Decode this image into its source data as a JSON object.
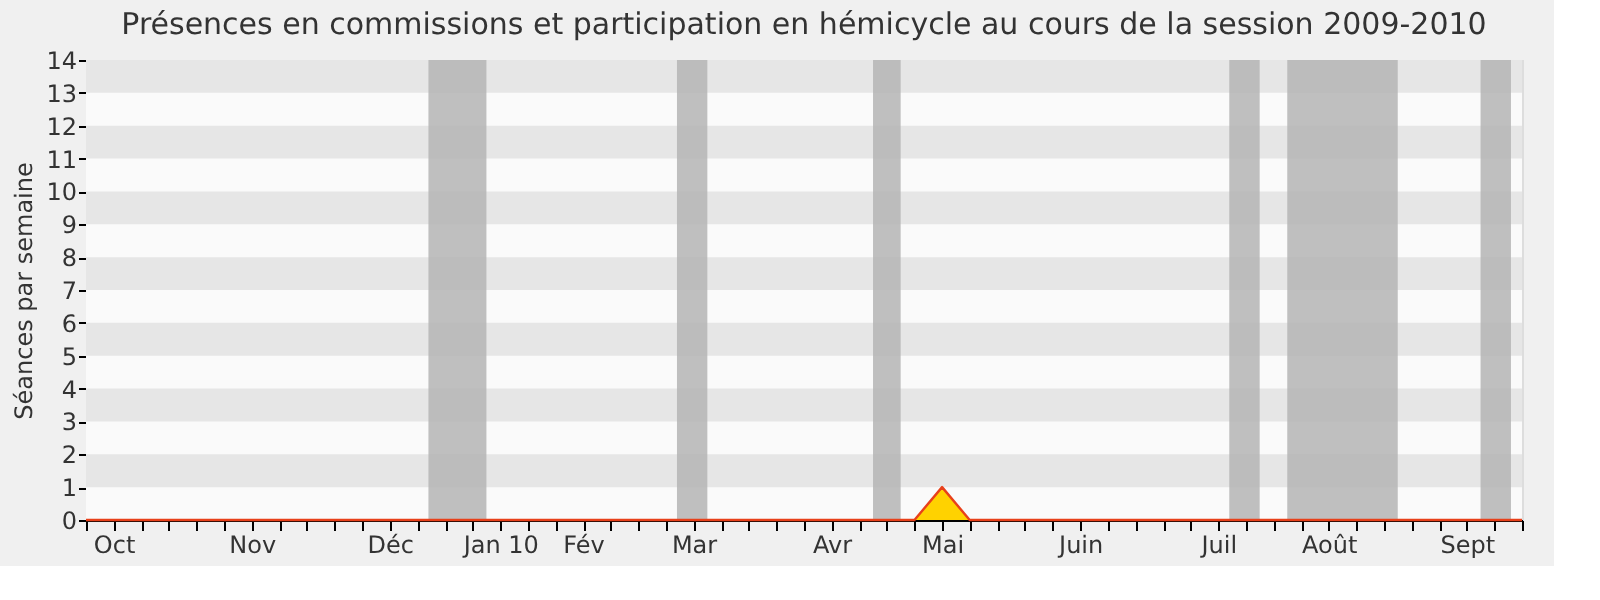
{
  "chart_data": {
    "type": "area",
    "title": "Présences en commissions et participation en hémicycle au cours de la session 2009-2010",
    "ylabel": "Séances par semaine",
    "categories": [
      null,
      "Oct",
      null,
      null,
      null,
      null,
      "Nov",
      null,
      null,
      null,
      null,
      "Déc",
      null,
      null,
      null,
      "Jan 10",
      null,
      null,
      "Fév",
      null,
      null,
      null,
      "Mar",
      null,
      null,
      null,
      null,
      "Avr",
      null,
      null,
      null,
      "Mai",
      null,
      null,
      null,
      null,
      "Juin",
      null,
      null,
      null,
      null,
      "Juil",
      null,
      null,
      null,
      "Août",
      null,
      null,
      null,
      null,
      "Sept",
      null,
      null
    ],
    "series": [
      {
        "color": "#ffd200",
        "values": [
          0,
          0,
          0,
          0,
          0,
          0,
          0,
          0,
          0,
          0,
          0,
          0,
          0,
          0,
          0,
          0,
          0,
          0,
          0,
          0,
          0,
          0,
          0,
          0,
          0,
          0,
          0,
          0,
          0,
          0,
          0,
          1,
          0,
          0,
          0,
          0,
          0,
          0,
          0,
          0,
          0,
          0,
          0,
          0,
          0,
          0,
          0,
          0,
          0,
          0,
          0,
          0,
          0
        ]
      }
    ],
    "ylim": [
      0,
      14
    ],
    "yticks": [
      0,
      1,
      2,
      3,
      4,
      5,
      6,
      7,
      8,
      9,
      10,
      11,
      12,
      13,
      14
    ],
    "line_style": "solid",
    "marker": "none"
  }
}
